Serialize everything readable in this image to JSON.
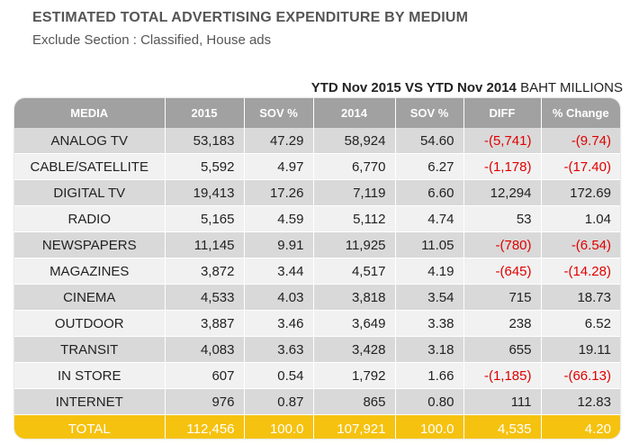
{
  "title": "ESTIMATED TOTAL ADVERTISING EXPENDITURE BY MEDIUM",
  "subtitle": "Exclude Section : Classified, House ads",
  "period_bold": "YTD Nov 2015 VS YTD Nov 2014",
  "period_unit": "BAHT MILLIONS",
  "colors": {
    "header": "#a1a1a1",
    "total": "#f5c20f",
    "negative": "#e00000",
    "row_odd": "#d9d9d9",
    "row_even": "#f1f1f1"
  },
  "chart_data": {
    "type": "table",
    "columns": [
      "MEDIA",
      "2015",
      "SOV %",
      "2014",
      "SOV %",
      "DIFF",
      "% Change"
    ],
    "rows": [
      [
        "ANALOG  TV",
        "53,183",
        "47.29",
        "58,924",
        "54.60",
        "-(5,741)",
        "-(9.74)"
      ],
      [
        "CABLE/SATELLITE",
        "5,592",
        "4.97",
        "6,770",
        "6.27",
        "-(1,178)",
        "-(17.40)"
      ],
      [
        "DIGITAL TV",
        "19,413",
        "17.26",
        "7,119",
        "6.60",
        "12,294",
        "172.69"
      ],
      [
        "RADIO",
        "5,165",
        "4.59",
        "5,112",
        "4.74",
        "53",
        "1.04"
      ],
      [
        "NEWSPAPERS",
        "11,145",
        "9.91",
        "11,925",
        "11.05",
        "-(780)",
        "-(6.54)"
      ],
      [
        "MAGAZINES",
        "3,872",
        "3.44",
        "4,517",
        "4.19",
        "-(645)",
        "-(14.28)"
      ],
      [
        "CINEMA",
        "4,533",
        "4.03",
        "3,818",
        "3.54",
        "715",
        "18.73"
      ],
      [
        "OUTDOOR",
        "3,887",
        "3.46",
        "3,649",
        "3.38",
        "238",
        "6.52"
      ],
      [
        "TRANSIT",
        "4,083",
        "3.63",
        "3,428",
        "3.18",
        "655",
        "19.11"
      ],
      [
        "IN STORE",
        "607",
        "0.54",
        "1,792",
        "1.66",
        "-(1,185)",
        "-(66.13)"
      ],
      [
        "INTERNET",
        "976",
        "0.87",
        "865",
        "0.80",
        "111",
        "12.83"
      ]
    ],
    "total": [
      "TOTAL",
      "112,456",
      "100.0",
      "107,921",
      "100.0",
      "4,535",
      "4.20"
    ]
  }
}
